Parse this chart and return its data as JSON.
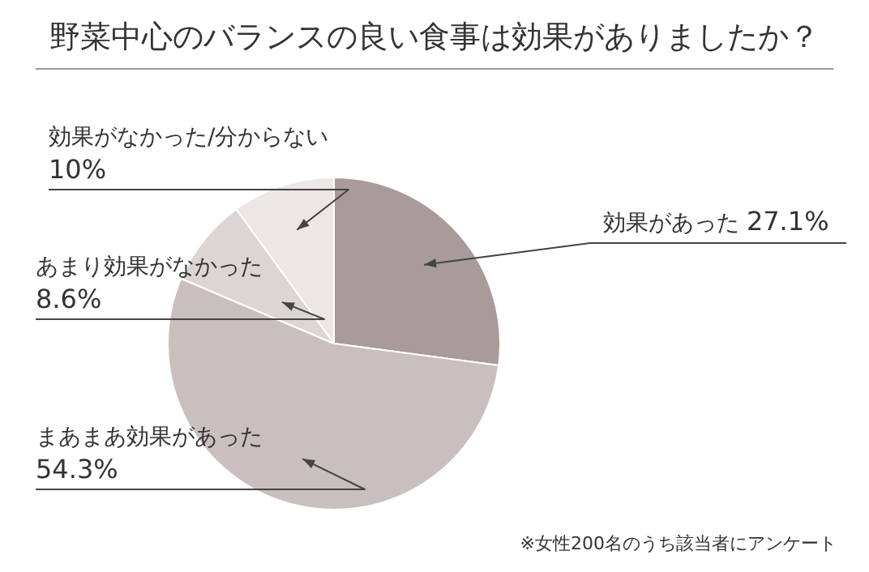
{
  "chart_data": {
    "type": "pie",
    "title": "野菜中心のバランスの良い食事は効果がありましたか？",
    "categories": [
      "効果があった",
      "まあまあ効果があった",
      "あまり効果がなかった",
      "効果がなかった/分からない"
    ],
    "values": [
      27.1,
      54.3,
      8.6,
      10
    ],
    "value_labels": [
      "27.1%",
      "54.3%",
      "8.6%",
      "10%"
    ],
    "colors": [
      "#a99b99",
      "#c9bfbe",
      "#ddd5d4",
      "#ece7e6"
    ],
    "legend": false,
    "annotations": [
      "※女性200名のうち該当者にアンケート"
    ]
  }
}
